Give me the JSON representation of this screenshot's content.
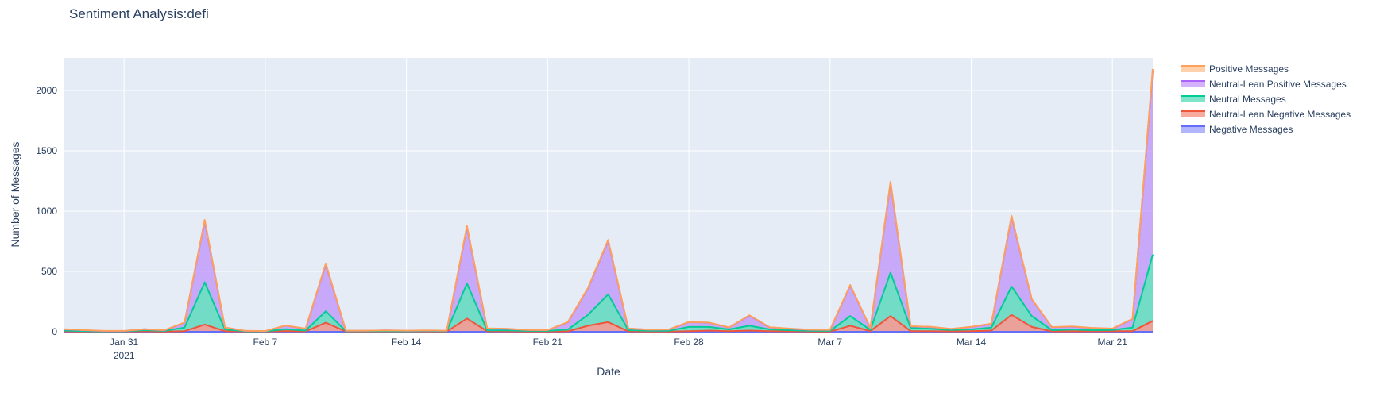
{
  "chart_data": {
    "type": "area",
    "title": "Sentiment Analysis:defi",
    "xlabel": "Date",
    "ylabel": "Number of Messages",
    "x_start": "2021-01-28",
    "x_end": "2021-03-23",
    "ylim": [
      0,
      2270
    ],
    "x_ticks": [
      {
        "date": "2021-01-31",
        "label": "Jan 31",
        "sublabel": "2021"
      },
      {
        "date": "2021-02-07",
        "label": "Feb 7",
        "sublabel": ""
      },
      {
        "date": "2021-02-14",
        "label": "Feb 14",
        "sublabel": ""
      },
      {
        "date": "2021-02-21",
        "label": "Feb 21",
        "sublabel": ""
      },
      {
        "date": "2021-02-28",
        "label": "Feb 28",
        "sublabel": ""
      },
      {
        "date": "2021-03-07",
        "label": "Mar 7",
        "sublabel": ""
      },
      {
        "date": "2021-03-14",
        "label": "Mar 14",
        "sublabel": ""
      },
      {
        "date": "2021-03-21",
        "label": "Mar 21",
        "sublabel": ""
      }
    ],
    "y_ticks": [
      0,
      500,
      1000,
      1500,
      2000
    ],
    "grid": true,
    "legend_position": "top-right",
    "dates": [
      "2021-01-28",
      "2021-01-29",
      "2021-01-30",
      "2021-01-31",
      "2021-02-01",
      "2021-02-02",
      "2021-02-03",
      "2021-02-04",
      "2021-02-05",
      "2021-02-06",
      "2021-02-07",
      "2021-02-08",
      "2021-02-09",
      "2021-02-10",
      "2021-02-11",
      "2021-02-12",
      "2021-02-13",
      "2021-02-14",
      "2021-02-15",
      "2021-02-16",
      "2021-02-17",
      "2021-02-18",
      "2021-02-19",
      "2021-02-20",
      "2021-02-21",
      "2021-02-22",
      "2021-02-23",
      "2021-02-24",
      "2021-02-25",
      "2021-02-26",
      "2021-02-27",
      "2021-02-28",
      "2021-03-01",
      "2021-03-02",
      "2021-03-03",
      "2021-03-04",
      "2021-03-05",
      "2021-03-06",
      "2021-03-07",
      "2021-03-08",
      "2021-03-09",
      "2021-03-10",
      "2021-03-11",
      "2021-03-12",
      "2021-03-13",
      "2021-03-14",
      "2021-03-15",
      "2021-03-16",
      "2021-03-17",
      "2021-03-18",
      "2021-03-19",
      "2021-03-20",
      "2021-03-21",
      "2021-03-22",
      "2021-03-23"
    ],
    "series": [
      {
        "name": "Negative Messages",
        "color": "#636efa",
        "fill": "rgba(99,110,250,0.5)",
        "values": [
          0,
          0,
          0,
          0,
          0,
          0,
          0,
          0,
          0,
          0,
          0,
          0,
          0,
          0,
          0,
          0,
          0,
          0,
          0,
          0,
          0,
          0,
          0,
          0,
          0,
          0,
          0,
          0,
          0,
          0,
          0,
          0,
          0,
          0,
          0,
          0,
          0,
          0,
          0,
          0,
          0,
          0,
          0,
          0,
          0,
          0,
          0,
          0,
          0,
          0,
          0,
          0,
          0,
          0,
          0
        ]
      },
      {
        "name": "Neutral-Lean Negative Messages",
        "color": "#ef553b",
        "fill": "rgba(239,85,59,0.5)",
        "values": [
          3,
          2,
          1,
          1,
          3,
          2,
          5,
          60,
          5,
          1,
          1,
          6,
          3,
          75,
          2,
          2,
          2,
          1,
          2,
          2,
          110,
          4,
          3,
          2,
          2,
          3,
          50,
          80,
          3,
          2,
          2,
          5,
          10,
          5,
          10,
          5,
          3,
          2,
          2,
          50,
          5,
          130,
          5,
          5,
          3,
          5,
          10,
          140,
          40,
          3,
          3,
          3,
          5,
          5,
          90
        ]
      },
      {
        "name": "Neutral Messages",
        "color": "#00cc96",
        "fill": "rgba(0,204,150,0.5)",
        "values": [
          7,
          4,
          2,
          2,
          10,
          5,
          30,
          350,
          15,
          3,
          2,
          15,
          7,
          95,
          3,
          3,
          3,
          3,
          4,
          3,
          290,
          8,
          8,
          5,
          5,
          15,
          90,
          230,
          10,
          6,
          6,
          35,
          30,
          15,
          40,
          15,
          10,
          6,
          5,
          80,
          10,
          360,
          25,
          20,
          12,
          15,
          25,
          235,
          90,
          10,
          15,
          10,
          10,
          30,
          550
        ]
      },
      {
        "name": "Neutral-Lean Positive Messages",
        "color": "#ab63fa",
        "fill": "rgba(171,99,250,0.5)",
        "values": [
          10,
          7,
          3,
          3,
          8,
          5,
          40,
          510,
          15,
          3,
          2,
          30,
          15,
          390,
          3,
          3,
          6,
          4,
          4,
          3,
          470,
          15,
          13,
          7,
          6,
          60,
          220,
          445,
          13,
          9,
          10,
          40,
          35,
          15,
          85,
          17,
          12,
          8,
          8,
          255,
          15,
          745,
          15,
          15,
          8,
          20,
          30,
          580,
          140,
          25,
          25,
          18,
          10,
          70,
          1520
        ]
      },
      {
        "name": "Positive Messages",
        "color": "#ffa15a",
        "fill": "rgba(255,161,90,0.5)",
        "values": [
          2,
          1,
          1,
          1,
          1,
          1,
          2,
          8,
          1,
          1,
          1,
          1,
          1,
          6,
          1,
          1,
          1,
          1,
          1,
          1,
          7,
          1,
          1,
          1,
          1,
          2,
          3,
          6,
          1,
          1,
          1,
          1,
          1,
          1,
          2,
          1,
          1,
          1,
          1,
          3,
          1,
          9,
          1,
          1,
          1,
          1,
          2,
          7,
          2,
          1,
          1,
          1,
          1,
          2,
          18
        ]
      }
    ]
  }
}
